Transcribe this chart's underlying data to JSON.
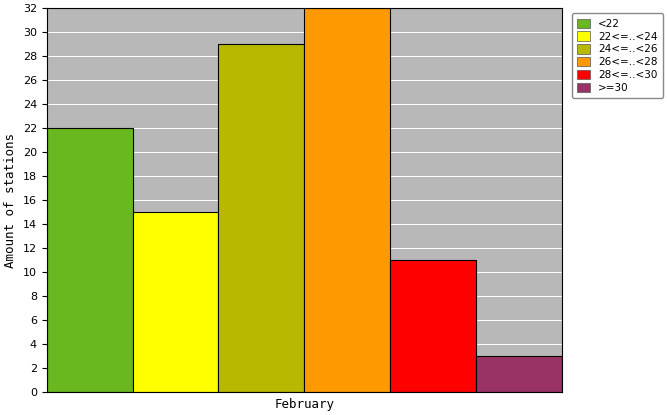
{
  "categories": [
    "<22",
    "22<=..<24",
    "24<=..<26",
    "26<=..<28",
    "28<=..<30",
    ">=30"
  ],
  "values": [
    22,
    15,
    29,
    32,
    11,
    3
  ],
  "colors": [
    "#6ab820",
    "#ffff00",
    "#b8b800",
    "#ff9900",
    "#ff0000",
    "#993366"
  ],
  "xlabel": "February",
  "ylabel": "Amount of stations",
  "ylim": [
    0,
    32
  ],
  "yticks": [
    0,
    2,
    4,
    6,
    8,
    10,
    12,
    14,
    16,
    18,
    20,
    22,
    24,
    26,
    28,
    30,
    32
  ],
  "plot_bg_color": "#b8b8b8",
  "fig_bg_color": "#ffffff",
  "bar_edge_color": "#000000",
  "legend_labels": [
    "<22",
    "22<=..<24",
    "24<=..<26",
    "26<=..<28",
    "28<=..<30",
    ">=30"
  ]
}
